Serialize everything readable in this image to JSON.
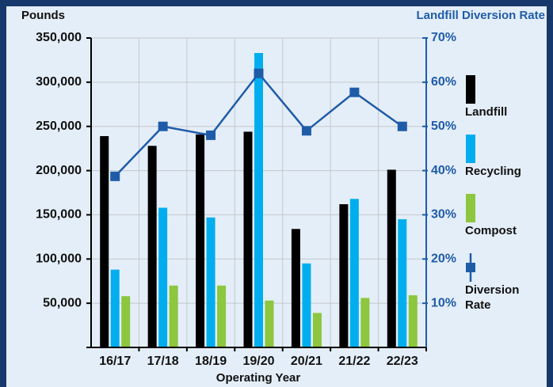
{
  "chart_data": {
    "type": "bar",
    "title": "Pounds",
    "y2_title": "Landfill Diversion Rate",
    "x_label": "Operating Year",
    "categories": [
      "16/17",
      "17/18",
      "18/19",
      "19/20",
      "20/21",
      "21/22",
      "22/23"
    ],
    "series": [
      {
        "name": "Landfill",
        "color": "#000000",
        "values": [
          239000,
          228000,
          241000,
          244000,
          134000,
          162000,
          201000
        ]
      },
      {
        "name": "Recycling",
        "color": "#00aeef",
        "values": [
          88000,
          158000,
          147000,
          333000,
          95000,
          168000,
          145000
        ]
      },
      {
        "name": "Compost",
        "color": "#8dc63f",
        "values": [
          58000,
          70000,
          70000,
          53000,
          39000,
          56000,
          59000
        ]
      },
      {
        "name": "Diversion Rate",
        "color": "#1f5ca8",
        "type": "line",
        "axis": "y2",
        "values": [
          38.7,
          50,
          48,
          62,
          49,
          57.7,
          50
        ]
      }
    ],
    "ylim": [
      0,
      350000
    ],
    "yticks": [
      {
        "value": 50000,
        "label": "50,000"
      },
      {
        "value": 100000,
        "label": "100,000"
      },
      {
        "value": 150000,
        "label": "150,000"
      },
      {
        "value": 200000,
        "label": "200,000"
      },
      {
        "value": 250000,
        "label": "250,000"
      },
      {
        "value": 300000,
        "label": "300,000"
      },
      {
        "value": 350000,
        "label": "350,000"
      }
    ],
    "y2lim": [
      0,
      70
    ],
    "y2ticks": [
      {
        "value": 10,
        "label": "10%"
      },
      {
        "value": 20,
        "label": "20%"
      },
      {
        "value": 30,
        "label": "30%"
      },
      {
        "value": 40,
        "label": "40%"
      },
      {
        "value": 50,
        "label": "50%"
      },
      {
        "value": 60,
        "label": "60%"
      },
      {
        "value": 70,
        "label": "70%"
      }
    ],
    "grid": true
  }
}
